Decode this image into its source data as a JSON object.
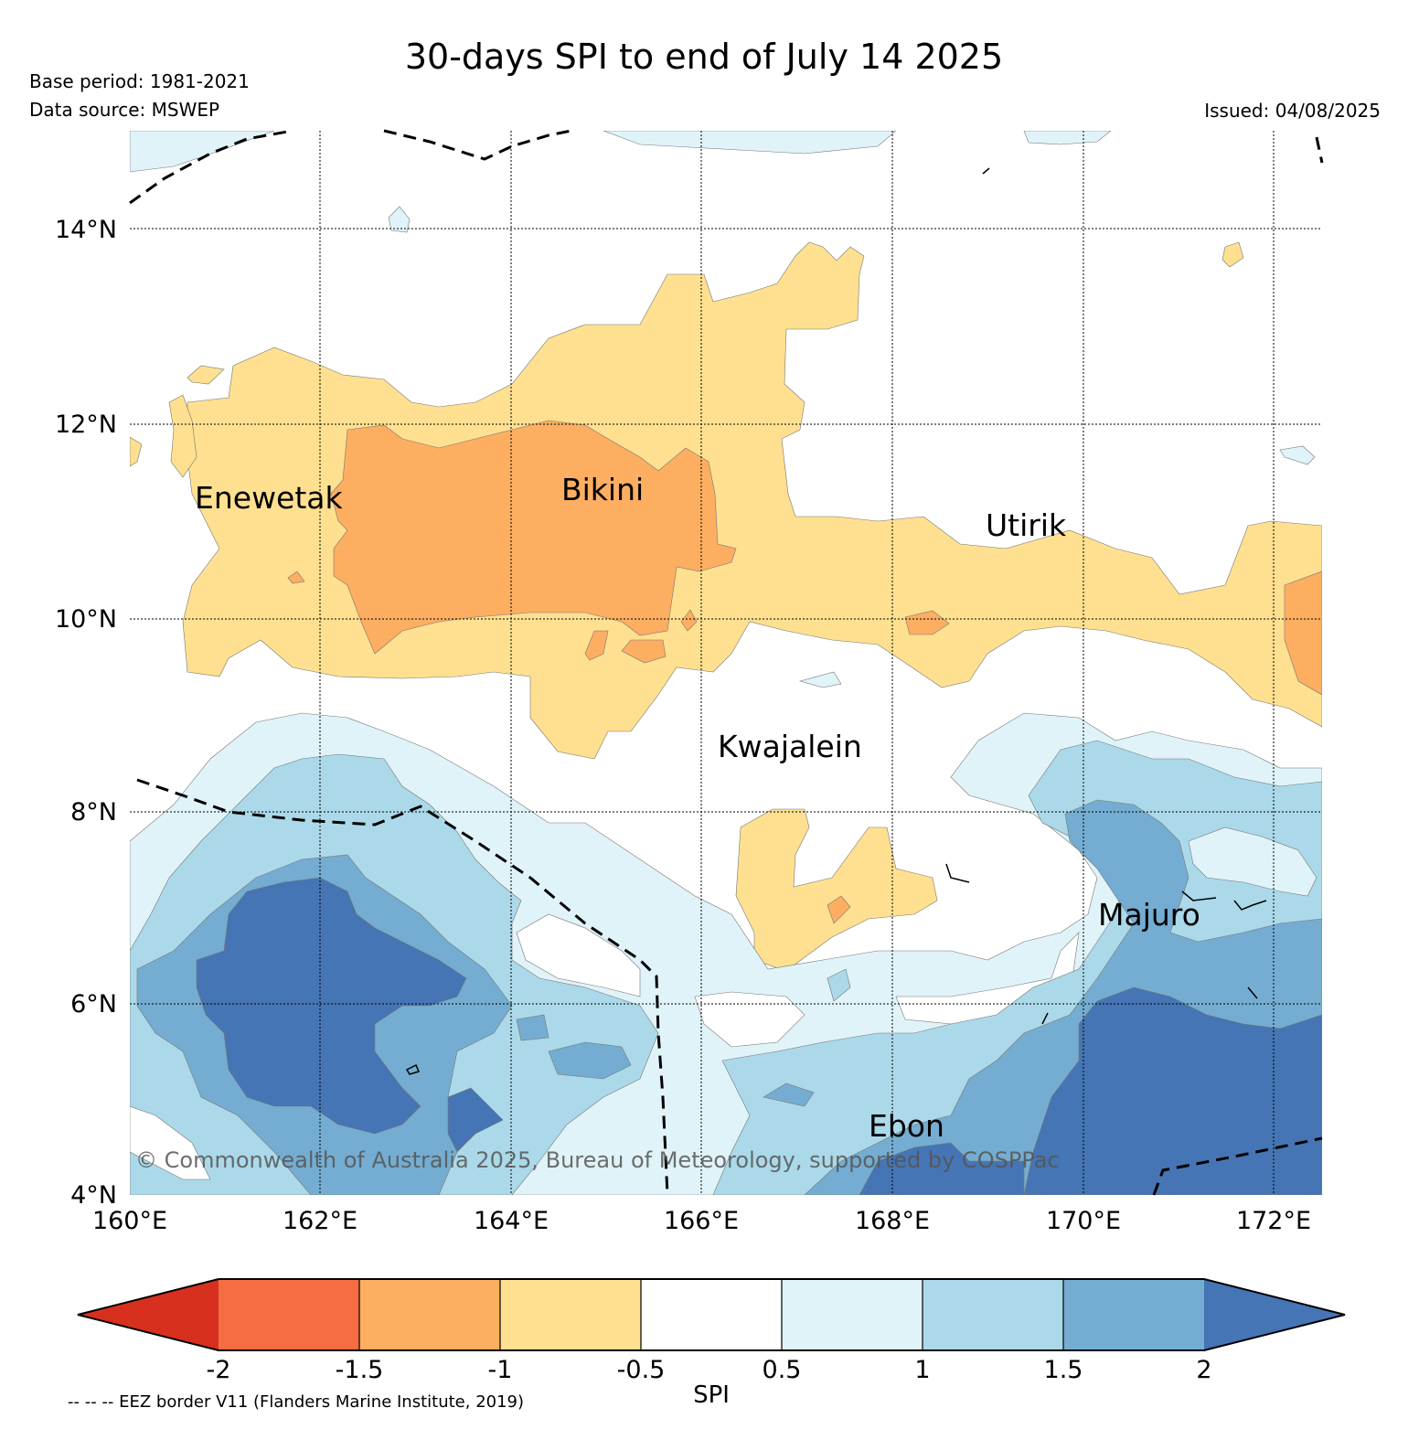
{
  "header": {
    "title": "30-days SPI to end of July 14 2025",
    "base_period": "Base period: 1981-2021",
    "data_source": "Data source: MSWEP",
    "issued": "Issued: 04/08/2025"
  },
  "map": {
    "lat_ticks": [
      "14°N",
      "12°N",
      "10°N",
      "8°N",
      "6°N",
      "4°N"
    ],
    "lon_ticks": [
      "160°E",
      "162°E",
      "164°E",
      "166°E",
      "168°E",
      "170°E",
      "172°E"
    ],
    "places": [
      {
        "name": "Enewetak"
      },
      {
        "name": "Bikini"
      },
      {
        "name": "Utirik"
      },
      {
        "name": "Kwajalein"
      },
      {
        "name": "Majuro"
      },
      {
        "name": "Ebon"
      }
    ],
    "copyright": "© Commonwealth of Australia 2025, Bureau of Meteorology, supported by COSPPac"
  },
  "colorbar": {
    "label": "SPI",
    "ticks": [
      "-2",
      "-1.5",
      "-1",
      "-0.5",
      "0.5",
      "1",
      "1.5",
      "2"
    ],
    "colors": [
      "#d7301f",
      "#f46d43",
      "#fdae61",
      "#fee090",
      "#ffffff",
      "#e0f3f8",
      "#abd9e9",
      "#74add1",
      "#4575b4"
    ]
  },
  "footnote": "-- -- -- EEZ border V11 (Flanders Marine Institute, 2019)"
}
